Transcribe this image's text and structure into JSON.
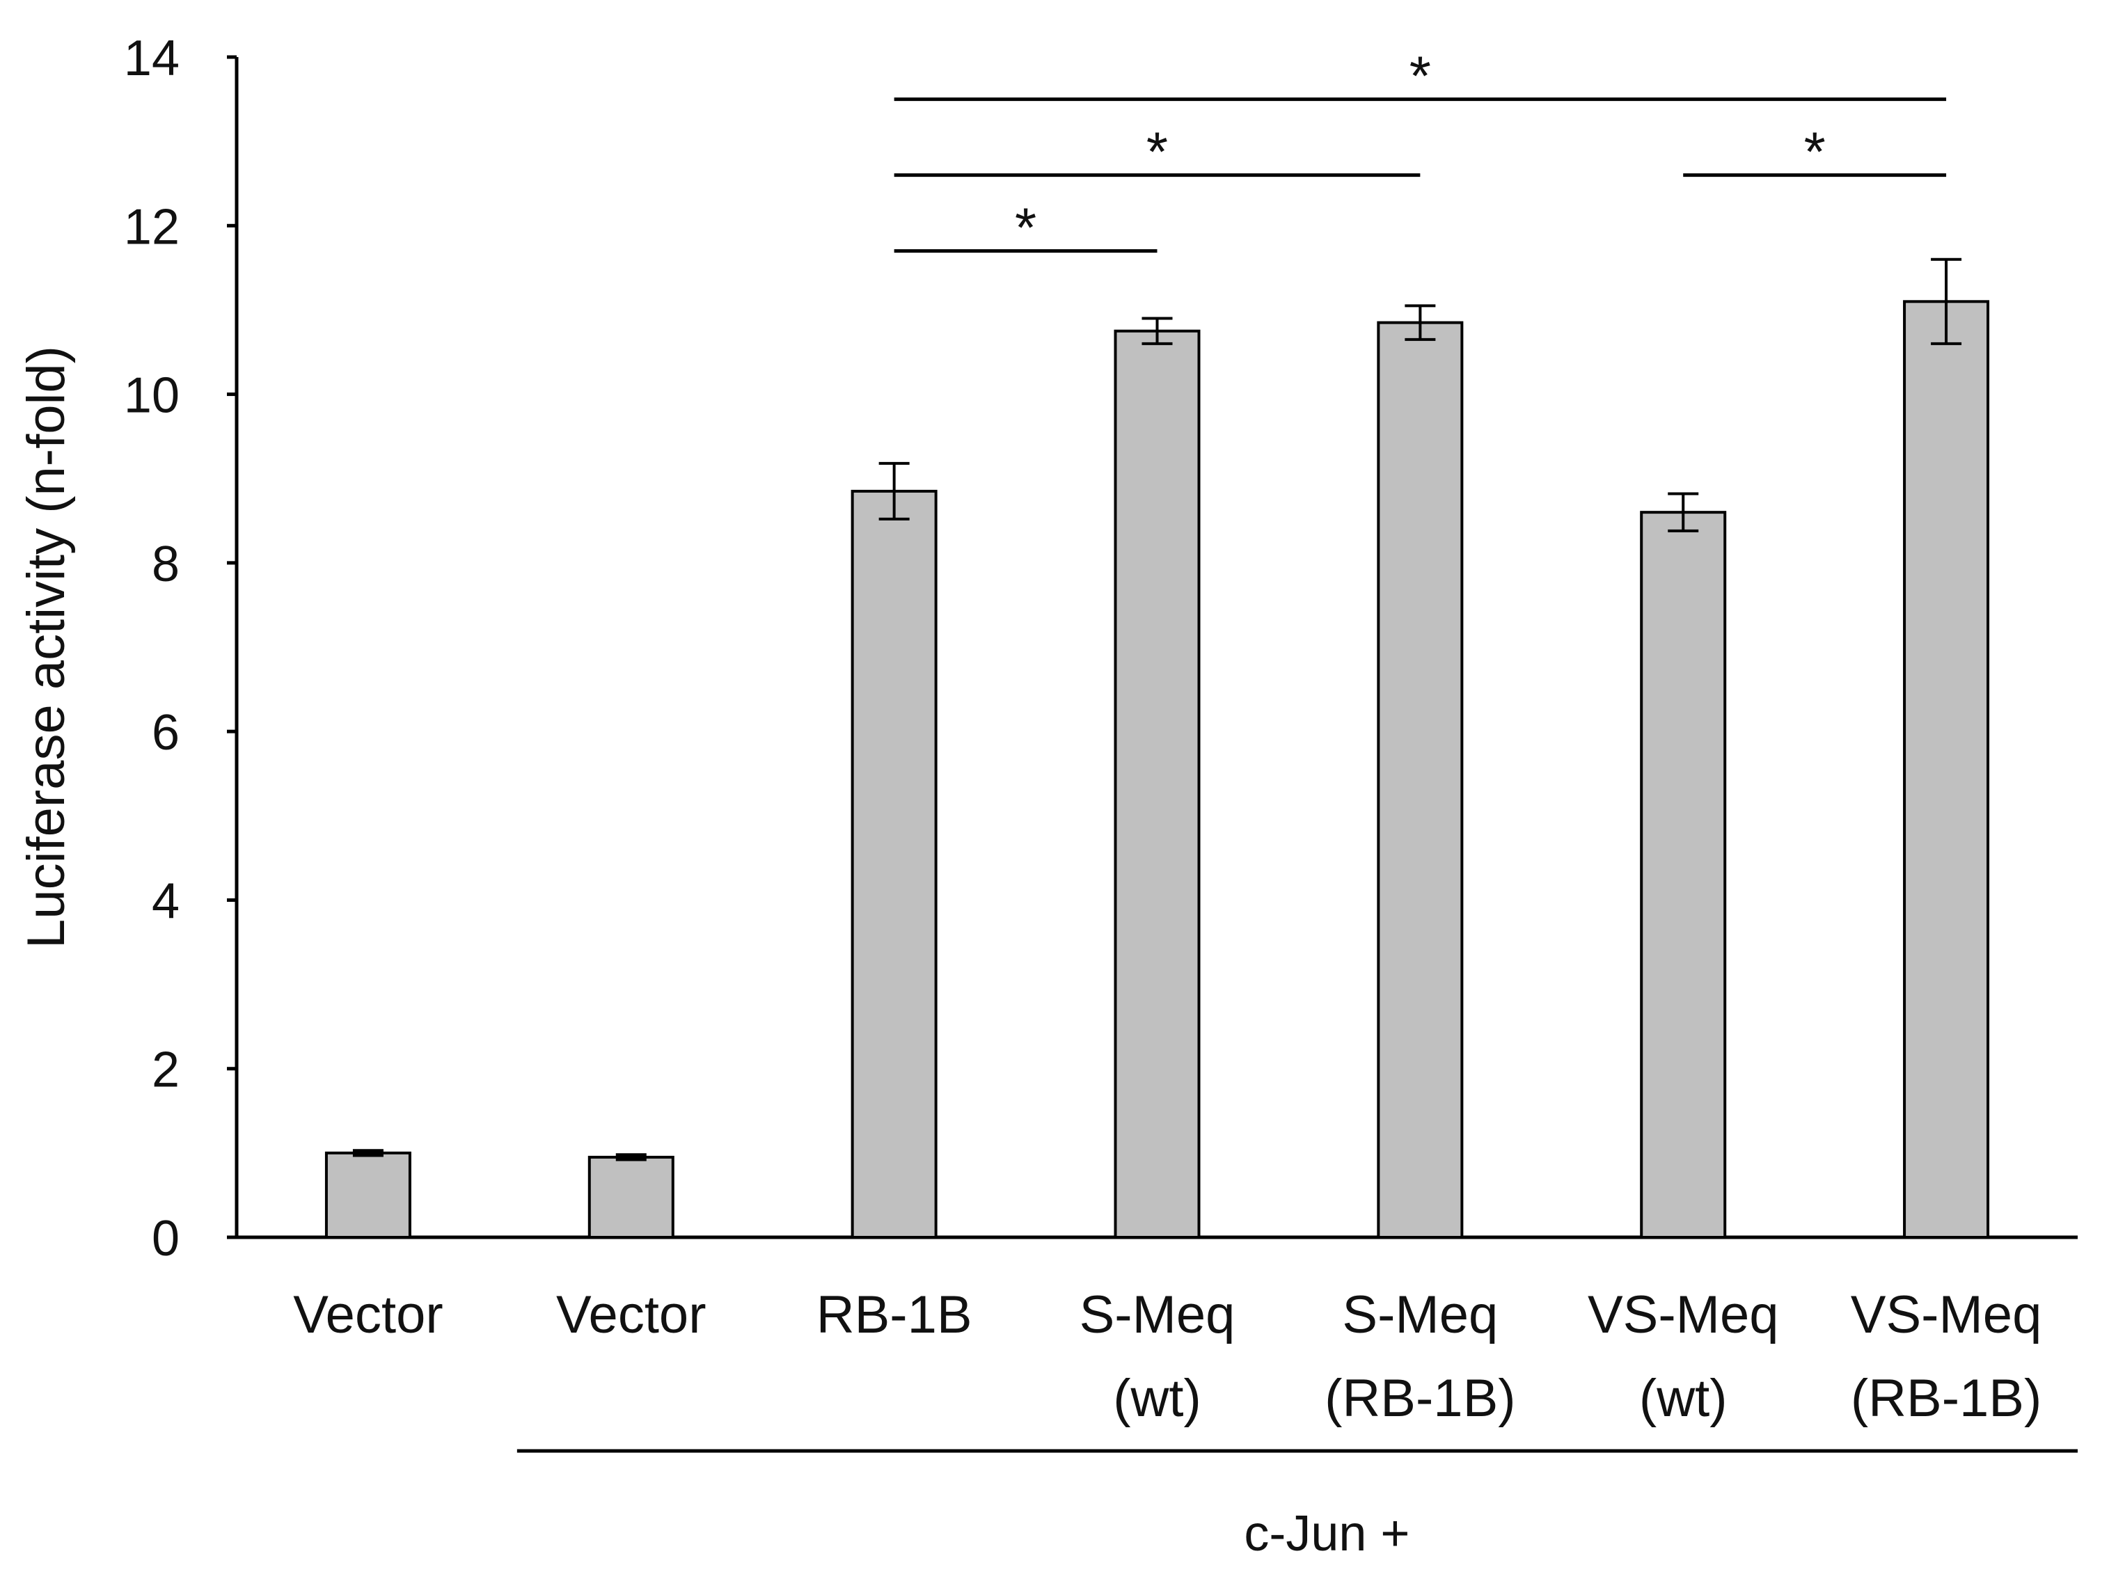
{
  "chart_data": {
    "type": "bar",
    "title": "",
    "xlabel": "",
    "ylabel": "Luciferase activity (n-fold)",
    "ylim": [
      0,
      14
    ],
    "yticks": [
      0,
      2,
      4,
      6,
      8,
      10,
      12,
      14
    ],
    "grid": false,
    "categories": [
      [
        "Vector"
      ],
      [
        "Vector"
      ],
      [
        "RB-1B"
      ],
      [
        "S-Meq",
        "(wt)"
      ],
      [
        "S-Meq",
        "(RB-1B)"
      ],
      [
        "VS-Meq",
        "(wt)"
      ],
      [
        "VS-Meq",
        "(RB-1B)"
      ]
    ],
    "values": [
      1.0,
      0.95,
      8.85,
      10.75,
      10.85,
      8.6,
      11.1
    ],
    "errors": [
      0.03,
      0.03,
      0.33,
      0.15,
      0.2,
      0.22,
      0.5
    ],
    "bar_color": "#c0c0c0",
    "group_label": "c-Jun +",
    "group_range": [
      1,
      6
    ],
    "significance": [
      {
        "from": 2,
        "to": 3,
        "y": 11.7,
        "label": "*"
      },
      {
        "from": 2,
        "to": 4,
        "y": 12.6,
        "label": "*"
      },
      {
        "from": 2,
        "to": 6,
        "y": 13.5,
        "label": "*"
      },
      {
        "from": 5,
        "to": 6,
        "y": 12.6,
        "label": "*"
      }
    ]
  }
}
